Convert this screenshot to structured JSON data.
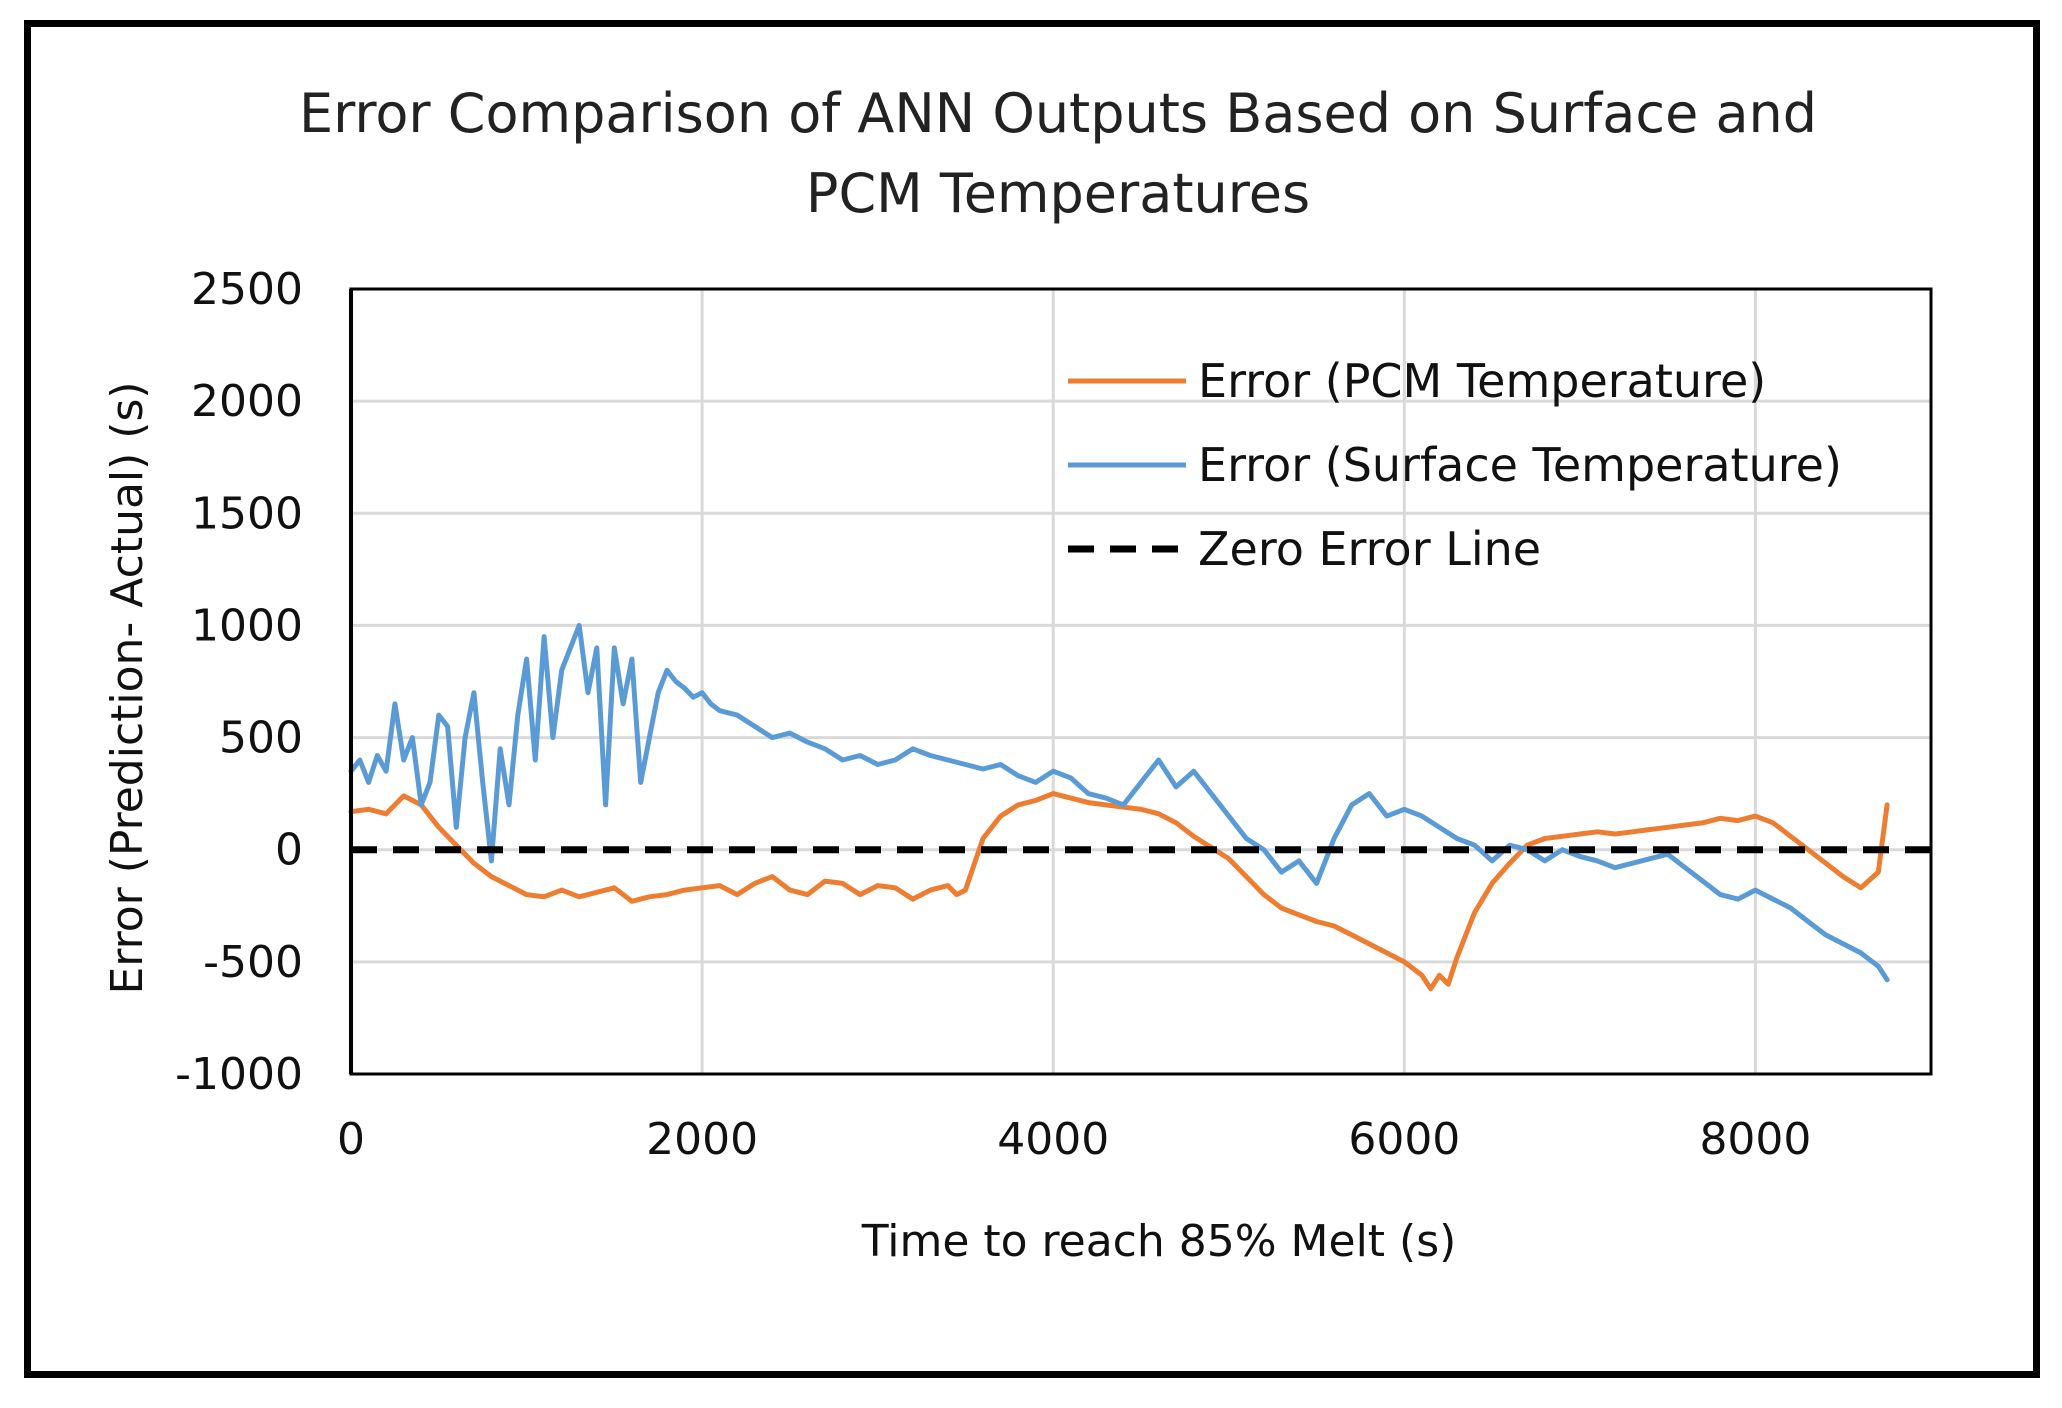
{
  "chart_data": {
    "type": "line",
    "title_lines": [
      "Error Comparison of ANN Outputs Based on Surface and",
      "PCM Temperatures"
    ],
    "xlabel": "Time to reach 85% Melt (s)",
    "ylabel": "Error (Prediction- Actual) (s)",
    "xlim": [
      0,
      9000
    ],
    "ylim": [
      -1000,
      2500
    ],
    "x_ticks": [
      0,
      2000,
      4000,
      6000,
      8000
    ],
    "y_ticks": [
      -1000,
      -500,
      0,
      500,
      1000,
      1500,
      2000,
      2500
    ],
    "x_tick_labels": [
      "0",
      "2000",
      "4000",
      "6000",
      "8000"
    ],
    "y_tick_labels": [
      "-1000",
      "-500",
      "0",
      "500",
      "1000",
      "1500",
      "2000",
      "2500"
    ],
    "grid": true,
    "legend_position": "top-right",
    "colors": {
      "pcm": "#ed7d31",
      "surface": "#5b9bd5",
      "zero": "#000000"
    },
    "series": [
      {
        "name": "Error (PCM Temperature)",
        "color": "#ed7d31",
        "x": [
          0,
          100,
          200,
          300,
          400,
          500,
          600,
          700,
          800,
          900,
          1000,
          1100,
          1200,
          1300,
          1400,
          1500,
          1600,
          1700,
          1800,
          1900,
          2000,
          2100,
          2200,
          2300,
          2400,
          2500,
          2600,
          2700,
          2800,
          2900,
          3000,
          3100,
          3200,
          3300,
          3400,
          3450,
          3500,
          3600,
          3700,
          3800,
          3900,
          4000,
          4100,
          4200,
          4300,
          4400,
          4500,
          4600,
          4700,
          4800,
          4900,
          5000,
          5100,
          5200,
          5300,
          5400,
          5500,
          5600,
          5700,
          5800,
          5900,
          6000,
          6100,
          6150,
          6200,
          6250,
          6300,
          6400,
          6500,
          6600,
          6700,
          6800,
          6900,
          7000,
          7100,
          7200,
          7300,
          7400,
          7500,
          7600,
          7700,
          7800,
          7900,
          8000,
          8100,
          8200,
          8300,
          8400,
          8500,
          8600,
          8700,
          8750
        ],
        "y": [
          170,
          180,
          160,
          240,
          200,
          100,
          20,
          -60,
          -120,
          -160,
          -200,
          -210,
          -180,
          -210,
          -190,
          -170,
          -230,
          -210,
          -200,
          -180,
          -170,
          -160,
          -200,
          -150,
          -120,
          -180,
          -200,
          -140,
          -150,
          -200,
          -160,
          -170,
          -220,
          -180,
          -160,
          -200,
          -180,
          50,
          150,
          200,
          220,
          250,
          230,
          210,
          200,
          190,
          180,
          160,
          120,
          60,
          10,
          -40,
          -120,
          -200,
          -260,
          -290,
          -320,
          -340,
          -380,
          -420,
          -460,
          -500,
          -560,
          -620,
          -560,
          -600,
          -480,
          -280,
          -150,
          -60,
          20,
          50,
          60,
          70,
          80,
          70,
          80,
          90,
          100,
          110,
          120,
          140,
          130,
          150,
          120,
          60,
          0,
          -60,
          -120,
          -170,
          -100,
          200
        ]
      },
      {
        "name": "Error (Surface Temperature)",
        "color": "#5b9bd5",
        "x": [
          0,
          50,
          100,
          150,
          200,
          250,
          300,
          350,
          400,
          450,
          500,
          550,
          600,
          650,
          700,
          750,
          800,
          850,
          900,
          950,
          1000,
          1050,
          1100,
          1150,
          1200,
          1250,
          1300,
          1350,
          1400,
          1450,
          1500,
          1550,
          1600,
          1650,
          1700,
          1750,
          1800,
          1850,
          1900,
          1950,
          2000,
          2050,
          2100,
          2200,
          2300,
          2400,
          2500,
          2600,
          2700,
          2800,
          2900,
          3000,
          3100,
          3200,
          3300,
          3400,
          3500,
          3600,
          3700,
          3800,
          3900,
          4000,
          4100,
          4200,
          4300,
          4400,
          4500,
          4600,
          4700,
          4800,
          4900,
          5000,
          5100,
          5200,
          5300,
          5400,
          5500,
          5600,
          5700,
          5800,
          5900,
          6000,
          6100,
          6200,
          6300,
          6400,
          6500,
          6600,
          6700,
          6800,
          6900,
          7000,
          7100,
          7200,
          7300,
          7400,
          7500,
          7600,
          7700,
          7800,
          7900,
          8000,
          8100,
          8200,
          8300,
          8400,
          8500,
          8600,
          8700,
          8750
        ],
        "y": [
          350,
          400,
          300,
          420,
          350,
          650,
          400,
          500,
          200,
          300,
          600,
          550,
          100,
          500,
          700,
          300,
          -50,
          450,
          200,
          600,
          850,
          400,
          950,
          500,
          800,
          900,
          1000,
          700,
          900,
          200,
          900,
          650,
          850,
          300,
          500,
          700,
          800,
          750,
          720,
          680,
          700,
          650,
          620,
          600,
          550,
          500,
          520,
          480,
          450,
          400,
          420,
          380,
          400,
          450,
          420,
          400,
          380,
          360,
          380,
          330,
          300,
          350,
          320,
          250,
          230,
          200,
          300,
          400,
          280,
          350,
          250,
          150,
          50,
          0,
          -100,
          -50,
          -150,
          50,
          200,
          250,
          150,
          180,
          150,
          100,
          50,
          20,
          -50,
          20,
          0,
          -50,
          0,
          -30,
          -50,
          -80,
          -60,
          -40,
          -20,
          -80,
          -140,
          -200,
          -220,
          -180,
          -220,
          -260,
          -320,
          -380,
          -420,
          -460,
          -520,
          -580
        ]
      },
      {
        "name": "Zero Error Line",
        "color": "#000000",
        "x": [
          0,
          9000
        ],
        "y": [
          0,
          0
        ]
      }
    ]
  }
}
